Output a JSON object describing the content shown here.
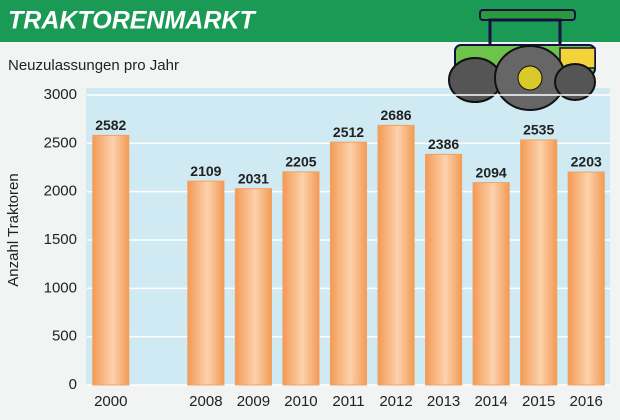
{
  "chart_data": {
    "type": "bar",
    "title": "TRAKTORENMARKT",
    "subtitle": "Neuzulassungen pro Jahr",
    "y_label": "Anzahl Traktoren",
    "categories": [
      "2000",
      null,
      "2008",
      "2009",
      "2010",
      "2011",
      "2012",
      "2013",
      "2014",
      "2015",
      "2016"
    ],
    "values": [
      2582,
      null,
      2109,
      2031,
      2205,
      2512,
      2686,
      2386,
      2094,
      2535,
      2203
    ],
    "color": "#f4a160",
    "ylim": [
      0,
      3000
    ],
    "yticks": [
      0,
      500,
      1000,
      1500,
      2000,
      2500,
      3000
    ],
    "grid": true
  }
}
